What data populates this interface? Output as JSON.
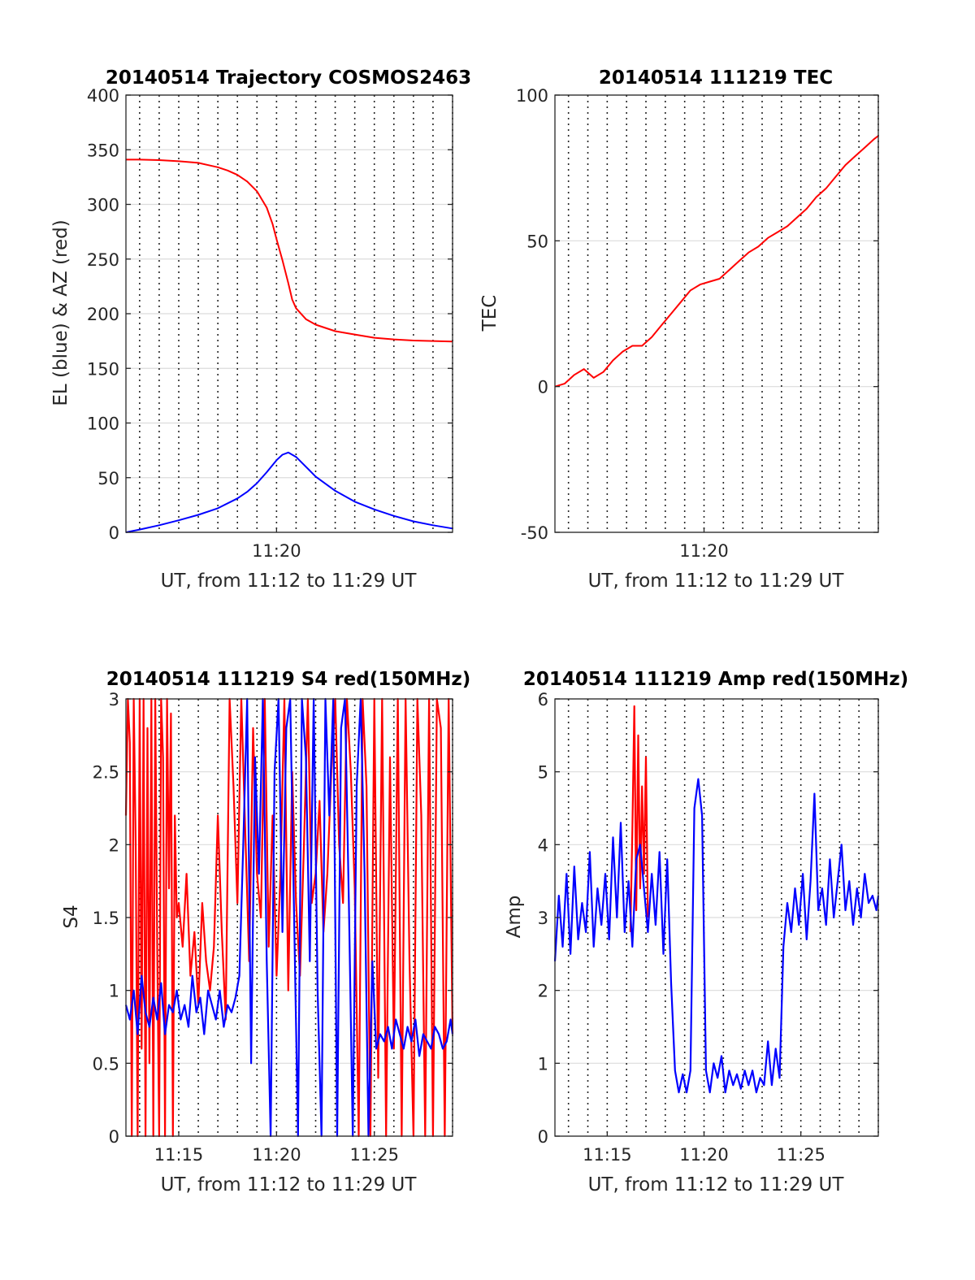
{
  "figure": {
    "background": "#ffffff",
    "colors": {
      "el": "#0000ff",
      "az": "#ff0000",
      "tec": "#ff0000",
      "s4_red": "#ff0000",
      "s4_blue": "#0000ff",
      "amp_red": "#ff0000",
      "amp_blue": "#0000ff"
    }
  },
  "chart_data": [
    {
      "id": "trajectory",
      "type": "line",
      "title": "20140514 Trajectory COSMOS2463",
      "xlabel": "UT, from 11:12 to 11:29 UT",
      "ylabel": "EL (blue) & AZ (red)",
      "x_units": "minutes since 11:00 UT",
      "xlim": [
        12.3,
        29.0
      ],
      "ylim": [
        0,
        400
      ],
      "yticks": [
        0,
        50,
        100,
        150,
        200,
        250,
        300,
        350,
        400
      ],
      "ytick_labels": [
        "0",
        "50",
        "100",
        "150",
        "200",
        "250",
        "300",
        "350",
        "400"
      ],
      "xticks": [
        20
      ],
      "xtick_labels": [
        "11:20"
      ],
      "grid": true,
      "series": [
        {
          "x": [
            12.3,
            13,
            14,
            15,
            16,
            17,
            17.5,
            18,
            18.5,
            19,
            19.5,
            19.8,
            20,
            20.3,
            20.6,
            20.8,
            21,
            21.5,
            22,
            23,
            24,
            25,
            26,
            27,
            28,
            29
          ],
          "y": [
            341,
            341,
            340.5,
            339.5,
            338,
            334,
            331,
            327,
            321,
            312,
            297,
            282,
            268,
            249,
            228,
            213,
            205,
            195,
            190,
            184,
            181,
            178,
            176.5,
            175.5,
            175,
            174.5
          ]
        },
        {
          "x": [
            12.3,
            13,
            14,
            15,
            16,
            17,
            18,
            18.5,
            19,
            19.5,
            20,
            20.3,
            20.6,
            21,
            21.5,
            22,
            23,
            24,
            25,
            26,
            27,
            28,
            29
          ],
          "y": [
            0,
            2.5,
            6.5,
            11,
            16,
            22,
            31,
            37,
            45,
            55,
            66,
            71,
            73,
            69,
            60,
            51,
            38,
            28,
            21,
            15,
            10,
            6.5,
            3.5
          ]
        }
      ]
    },
    {
      "id": "tec",
      "type": "line",
      "title": "20140514 111219 TEC",
      "xlabel": "UT, from 11:12 to 11:29 UT",
      "ylabel": "TEC",
      "x_units": "minutes since 11:00 UT",
      "xlim": [
        12.3,
        29.0
      ],
      "ylim": [
        -50,
        100
      ],
      "yticks": [
        -50,
        0,
        50,
        100
      ],
      "ytick_labels": [
        "-50",
        "0",
        "50",
        "100"
      ],
      "xticks": [
        20
      ],
      "xtick_labels": [
        "11:20"
      ],
      "grid": true,
      "series": [
        {
          "x": [
            12.3,
            12.8,
            13.3,
            13.8,
            14.3,
            14.8,
            15.3,
            15.8,
            16.3,
            16.8,
            17.3,
            17.8,
            18.3,
            18.8,
            19.3,
            19.8,
            20.3,
            20.8,
            21.3,
            21.8,
            22.3,
            22.8,
            23.3,
            23.8,
            24.3,
            24.8,
            25.3,
            25.8,
            26.3,
            26.8,
            27.3,
            27.8,
            28.3,
            28.8,
            29.0
          ],
          "y": [
            0,
            1,
            4,
            6,
            3,
            5,
            9,
            12,
            14,
            14,
            17,
            21,
            25,
            29,
            33,
            35,
            36,
            37,
            40,
            43,
            46,
            48,
            51,
            53,
            55,
            58,
            61,
            65,
            68,
            72,
            76,
            79,
            82,
            85,
            86
          ]
        }
      ]
    },
    {
      "id": "s4",
      "type": "line",
      "title": "20140514 111219 S4 red(150MHz)",
      "xlabel": "UT, from 11:12 to 11:29 UT",
      "ylabel": "S4",
      "x_units": "minutes since 11:00 UT",
      "xlim": [
        12.3,
        29.0
      ],
      "ylim": [
        0,
        3
      ],
      "yticks": [
        0,
        0.5,
        1,
        1.5,
        2,
        2.5,
        3
      ],
      "ytick_labels": [
        "0",
        "0.5",
        "1",
        "1.5",
        "2",
        "2.5",
        "3"
      ],
      "xticks": [
        15,
        20,
        25
      ],
      "xtick_labels": [
        "11:15",
        "11:20",
        "11:25"
      ],
      "grid": true,
      "series": [
        {
          "x": [
            12.3,
            12.4,
            12.5,
            12.6,
            12.7,
            12.8,
            12.9,
            13.0,
            13.1,
            13.2,
            13.3,
            13.4,
            13.5,
            13.6,
            13.7,
            13.8,
            13.9,
            14.0,
            14.1,
            14.2,
            14.3,
            14.4,
            14.5,
            14.6,
            14.7,
            14.8,
            14.9,
            15.0,
            15.2,
            15.4,
            15.6,
            15.8,
            16.0,
            16.2,
            16.4,
            16.6,
            16.8,
            17.0,
            17.2,
            17.4,
            17.6,
            17.8,
            18.0,
            18.2,
            18.4,
            18.6,
            18.8,
            19.0,
            19.2,
            19.4,
            19.6,
            19.8,
            20.0,
            20.2,
            20.4,
            20.6,
            20.8,
            21.0,
            21.2,
            21.4,
            21.6,
            21.8,
            22.0,
            22.2,
            22.4,
            22.6,
            22.8,
            23.0,
            23.2,
            23.4,
            23.6,
            23.8,
            24.0,
            24.2,
            24.4,
            24.6,
            24.8,
            25.0,
            25.2,
            25.4,
            25.6,
            25.8,
            26.0,
            26.2,
            26.4,
            26.6,
            26.8,
            27.0,
            27.2,
            27.4,
            27.6,
            27.8,
            28.0,
            28.2,
            28.4,
            28.6,
            28.8,
            29.0
          ],
          "y": [
            2.2,
            3,
            2.7,
            0,
            3,
            2,
            0,
            3,
            0.6,
            3,
            0,
            2.8,
            0.5,
            3,
            0,
            3,
            1.3,
            0,
            3,
            2.6,
            0,
            3,
            1.7,
            2.9,
            0,
            2.2,
            1.5,
            1.6,
            1.3,
            1.8,
            1.1,
            1.4,
            0.9,
            1.6,
            1.2,
            1.0,
            1.3,
            2.2,
            1.4,
            0.8,
            3,
            2.4,
            1.6,
            3,
            2.1,
            1.2,
            2.8,
            1.8,
            1.5,
            3,
            1.3,
            2.2,
            1.1,
            1.8,
            3,
            1.0,
            2.5,
            1.6,
            1.1,
            2.0,
            3,
            1.6,
            1.8,
            2.3,
            1.4,
            1.8,
            2.5,
            3,
            2.0,
            1.6,
            3,
            2.5,
            1.7,
            0,
            3,
            2.4,
            0,
            3,
            0.4,
            3,
            0,
            2.6,
            0.6,
            3,
            0,
            3,
            1.2,
            0,
            3,
            2.2,
            0,
            3,
            0,
            3,
            2.8,
            0,
            3,
            0.7
          ]
        },
        {
          "x": [
            12.3,
            12.5,
            12.7,
            12.9,
            13.1,
            13.3,
            13.5,
            13.7,
            13.9,
            14.1,
            14.3,
            14.5,
            14.7,
            14.9,
            15.1,
            15.3,
            15.5,
            15.7,
            15.9,
            16.1,
            16.3,
            16.5,
            16.7,
            16.9,
            17.1,
            17.3,
            17.5,
            17.7,
            17.9,
            18.1,
            18.3,
            18.5,
            18.7,
            18.9,
            19.1,
            19.3,
            19.5,
            19.7,
            19.9,
            20.1,
            20.3,
            20.5,
            20.7,
            20.9,
            21.1,
            21.3,
            21.5,
            21.7,
            21.9,
            22.1,
            22.3,
            22.5,
            22.7,
            22.9,
            23.1,
            23.3,
            23.5,
            23.7,
            23.9,
            24.1,
            24.3,
            24.5,
            24.7,
            24.9,
            25.1,
            25.3,
            25.5,
            25.7,
            25.9,
            26.1,
            26.3,
            26.5,
            26.7,
            26.9,
            27.1,
            27.3,
            27.5,
            27.7,
            27.9,
            28.1,
            28.3,
            28.5,
            28.7,
            28.9,
            29.0
          ],
          "y": [
            0.9,
            0.8,
            1.0,
            0.7,
            1.1,
            0.85,
            0.75,
            0.95,
            0.8,
            1.05,
            0.7,
            0.9,
            0.85,
            1.0,
            0.8,
            0.9,
            0.75,
            1.1,
            0.85,
            0.95,
            0.7,
            1.0,
            0.9,
            0.8,
            1.0,
            0.75,
            0.9,
            0.85,
            0.95,
            1.1,
            2.0,
            3,
            0.5,
            2.6,
            1.8,
            3,
            1.2,
            0.0,
            2.5,
            3,
            1.4,
            2.8,
            3,
            1.5,
            0.0,
            3,
            2.6,
            1.2,
            3,
            1.0,
            0.0,
            3,
            2.2,
            3,
            0.0,
            2.8,
            3,
            1.6,
            0.0,
            2.4,
            3,
            1.8,
            0.0,
            1.2,
            0.6,
            0.7,
            0.65,
            0.75,
            0.6,
            0.8,
            0.7,
            0.6,
            0.75,
            0.65,
            0.8,
            0.55,
            0.7,
            0.65,
            0.6,
            0.75,
            0.7,
            0.6,
            0.65,
            0.8,
            0.7
          ]
        }
      ]
    },
    {
      "id": "amp",
      "type": "line",
      "title": "20140514 111219 Amp red(150MHz)",
      "xlabel": "UT, from 11:12 to 11:29 UT",
      "ylabel": "Amp",
      "x_units": "minutes since 11:00 UT",
      "xlim": [
        12.3,
        29.0
      ],
      "ylim": [
        0,
        6
      ],
      "yticks": [
        0,
        1,
        2,
        3,
        4,
        5,
        6
      ],
      "ytick_labels": [
        "0",
        "1",
        "2",
        "3",
        "4",
        "5",
        "6"
      ],
      "xticks": [
        15,
        20,
        25
      ],
      "xtick_labels": [
        "11:15",
        "11:20",
        "11:25"
      ],
      "grid": true,
      "series": [
        {
          "x": [
            16.2,
            16.3,
            16.4,
            16.5,
            16.6,
            16.7,
            16.8,
            16.9,
            17.0,
            17.1
          ],
          "y": [
            2.8,
            4.2,
            5.9,
            3.1,
            5.5,
            3.4,
            4.8,
            3.6,
            5.2,
            3.0
          ]
        },
        {
          "x": [
            12.3,
            12.5,
            12.7,
            12.9,
            13.1,
            13.3,
            13.5,
            13.7,
            13.9,
            14.1,
            14.3,
            14.5,
            14.7,
            14.9,
            15.1,
            15.3,
            15.5,
            15.7,
            15.9,
            16.1,
            16.3,
            16.5,
            16.7,
            16.9,
            17.1,
            17.3,
            17.5,
            17.7,
            17.9,
            18.1,
            18.3,
            18.5,
            18.7,
            18.9,
            19.1,
            19.3,
            19.5,
            19.7,
            19.9,
            20.1,
            20.3,
            20.5,
            20.7,
            20.9,
            21.1,
            21.3,
            21.5,
            21.7,
            21.9,
            22.1,
            22.3,
            22.5,
            22.7,
            22.9,
            23.1,
            23.3,
            23.5,
            23.7,
            23.9,
            24.1,
            24.3,
            24.5,
            24.7,
            24.9,
            25.1,
            25.3,
            25.5,
            25.7,
            25.9,
            26.1,
            26.3,
            26.5,
            26.7,
            26.9,
            27.1,
            27.3,
            27.5,
            27.7,
            27.9,
            28.1,
            28.3,
            28.5,
            28.7,
            28.9,
            29.0
          ],
          "y": [
            2.4,
            3.3,
            2.6,
            3.6,
            2.5,
            3.7,
            2.7,
            3.2,
            2.8,
            3.9,
            2.6,
            3.4,
            2.9,
            3.6,
            2.7,
            4.1,
            3.0,
            4.3,
            2.8,
            3.5,
            2.6,
            3.8,
            4.0,
            3.4,
            2.8,
            3.6,
            2.9,
            3.9,
            2.5,
            3.8,
            2.1,
            0.9,
            0.6,
            0.85,
            0.6,
            0.9,
            4.5,
            4.9,
            4.4,
            0.9,
            0.6,
            1.0,
            0.8,
            1.1,
            0.6,
            0.9,
            0.7,
            0.85,
            0.65,
            0.9,
            0.7,
            0.9,
            0.6,
            0.8,
            0.7,
            1.3,
            0.7,
            1.2,
            0.8,
            2.6,
            3.2,
            2.8,
            3.4,
            2.9,
            3.6,
            2.7,
            3.5,
            4.7,
            3.1,
            3.4,
            2.9,
            3.8,
            3.0,
            3.5,
            4.0,
            3.1,
            3.5,
            2.9,
            3.4,
            3.0,
            3.6,
            3.2,
            3.3,
            3.1,
            3.3
          ]
        }
      ]
    }
  ]
}
